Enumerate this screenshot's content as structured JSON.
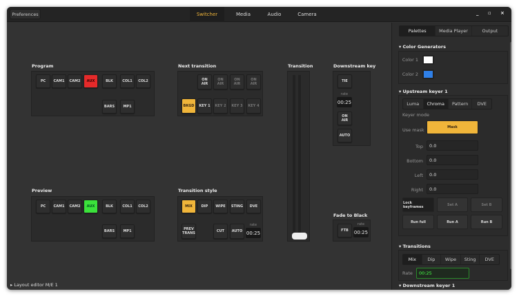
{
  "header": {
    "preferences": "Preferences",
    "tabs": [
      "Switcher",
      "Media",
      "Audio",
      "Camera"
    ],
    "active_tab": "Switcher",
    "controls": {
      "minimize": "_",
      "maximize": "▫",
      "close": "×"
    }
  },
  "program": {
    "label": "Program",
    "buttons": [
      "PC",
      "CAM1",
      "CAM2",
      "AUX",
      "BLK",
      "COL1",
      "COL2",
      "BARS",
      "MP1"
    ],
    "active": "AUX",
    "active_color": "#e52a2a"
  },
  "preview": {
    "label": "Preview",
    "buttons": [
      "PC",
      "CAM1",
      "CAM2",
      "AUX",
      "BLK",
      "COL1",
      "COL2",
      "BARS",
      "MP1"
    ],
    "active": "AUX",
    "active_color": "#3be23b"
  },
  "next_transition": {
    "label": "Next transition",
    "on_air": [
      "ON AIR",
      "ON AIR",
      "ON AIR",
      "ON AIR"
    ],
    "layers": [
      "BKGD",
      "KEY 1",
      "KEY 2",
      "KEY 3",
      "KEY 4"
    ],
    "active": "BKGD"
  },
  "transition_style": {
    "label": "Transition style",
    "styles": [
      "MIX",
      "DIP",
      "WIPE",
      "STING",
      "DVE"
    ],
    "active": "MIX",
    "prev_trans": "PREV TRANS",
    "cut": "CUT",
    "auto": "AUTO",
    "rate_label": "rate",
    "rate": "00:25"
  },
  "transition": {
    "label": "Transition",
    "position": 1.0
  },
  "downstream_key": {
    "label": "Downstream key",
    "tie": "TIE",
    "rate_label": "rate",
    "rate": "00:25",
    "on_air": "ON AIR",
    "auto": "AUTO"
  },
  "fade_to_black": {
    "label": "Fade to Black",
    "ftb": "FTB",
    "rate_label": "rate",
    "rate": "00:25"
  },
  "footer": {
    "layout_editor": "Layout editor M/E 1"
  },
  "sidebar": {
    "tabs": [
      "Palettes",
      "Media Player",
      "Output"
    ],
    "active_tab": "Palettes",
    "color_generators": {
      "title": "Color Generators",
      "color1_label": "Color 1",
      "color1": "#ffffff",
      "color2_label": "Color 2",
      "color2": "#2f80e8"
    },
    "upstream_keyer": {
      "title": "Upstream keyer 1",
      "tabs": [
        "Luma",
        "Chroma",
        "Pattern",
        "DVE"
      ],
      "active_tab": "Chroma",
      "keyer_mode": "Keyer mode",
      "use_mask": "Use mask",
      "mask": "Mask",
      "fields": [
        {
          "label": "Top",
          "value": "0.0"
        },
        {
          "label": "Bottom",
          "value": "0.0"
        },
        {
          "label": "Left",
          "value": "0.0"
        },
        {
          "label": "Right",
          "value": "0.0"
        }
      ],
      "buttons": [
        "Lock keyframes",
        "Set A",
        "Set B",
        "Run full",
        "Run A",
        "Run B"
      ]
    },
    "transitions": {
      "title": "Transitions",
      "tabs": [
        "Mix",
        "Dip",
        "Wipe",
        "Sting",
        "DVE"
      ],
      "active_tab": "Mix",
      "rate_label": "Rate",
      "rate": "00:25"
    },
    "downstream_keyer": {
      "title": "Downstream keyer 1"
    }
  }
}
